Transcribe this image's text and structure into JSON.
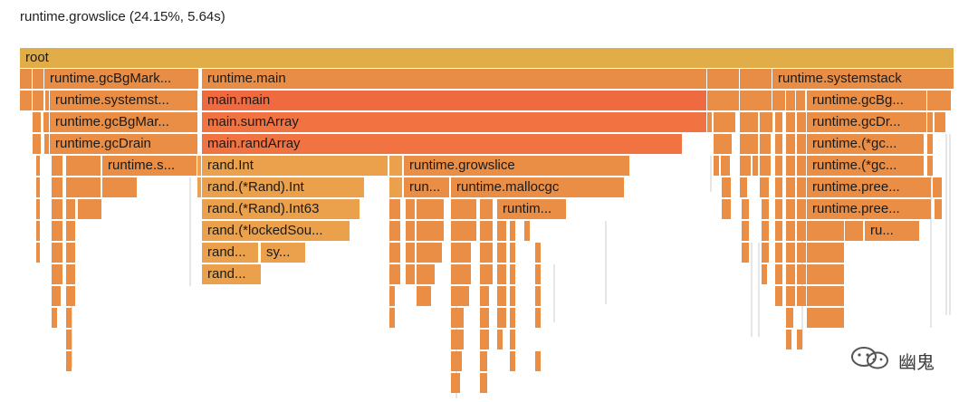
{
  "hover_info": "runtime.growslice (24.15%, 5.64s)",
  "frames": [
    {
      "label": "root"
    },
    {
      "label": "runtime.gcBgMark..."
    },
    {
      "label": "runtime.main"
    },
    {
      "label": "runtime.systemstack"
    },
    {
      "label": "runtime.systemst..."
    },
    {
      "label": "main.main"
    },
    {
      "label": "runtime.gcBg..."
    },
    {
      "label": "runtime.gcBgMar..."
    },
    {
      "label": "main.sumArray"
    },
    {
      "label": "runtime.gcDr..."
    },
    {
      "label": "runtime.gcDrain"
    },
    {
      "label": "main.randArray"
    },
    {
      "label": "runtime.(*gc..."
    },
    {
      "label": "runtime.s..."
    },
    {
      "label": "rand.Int"
    },
    {
      "label": "runtime.growslice"
    },
    {
      "label": "runtime.(*gc..."
    },
    {
      "label": "rand.(*Rand).Int"
    },
    {
      "label": "run..."
    },
    {
      "label": "runtime.mallocgc"
    },
    {
      "label": "runtime.pree..."
    },
    {
      "label": "rand.(*Rand).Int63"
    },
    {
      "label": "runtim..."
    },
    {
      "label": "runtime.pree..."
    },
    {
      "label": "rand.(*lockedSou..."
    },
    {
      "label": "ru..."
    },
    {
      "label": "rand..."
    },
    {
      "label": "sy..."
    },
    {
      "label": "rand..."
    },
    {
      "label": ""
    }
  ],
  "colors": {
    "root": "#e1ad48",
    "level1": "#e88d45",
    "orange": "#ea8e45",
    "hot": "#ef6a3f",
    "hot2": "#f07341",
    "amber": "#eba04c",
    "tan": "#e8974a",
    "light": "#efa14f"
  },
  "watermark": {
    "icon": "wechat-icon",
    "text": "幽鬼"
  }
}
